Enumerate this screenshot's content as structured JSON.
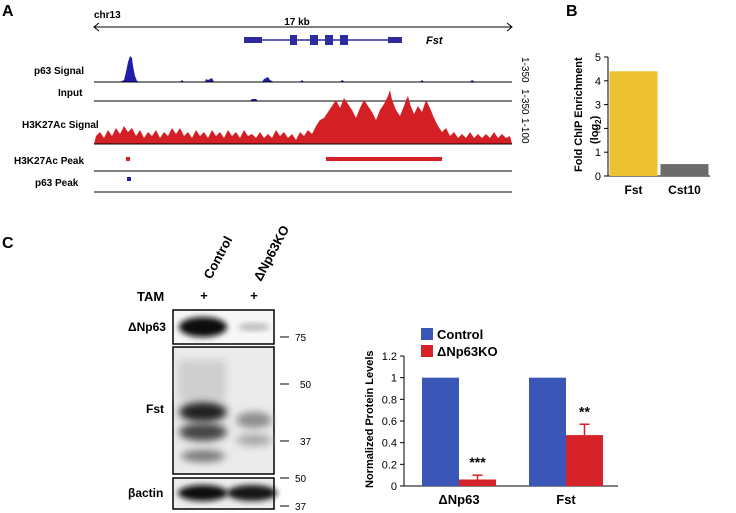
{
  "panel_labels": {
    "a": "A",
    "b": "B",
    "c": "C"
  },
  "genome_browser": {
    "chrom": "chr13",
    "scale_label": "17 kb",
    "gene_name": "Fst",
    "tracks": [
      {
        "name": "p63 Signal",
        "range": "1-350"
      },
      {
        "name": "Input",
        "range": "1-350"
      },
      {
        "name": "H3K27Ac Signal",
        "range": "1-100"
      },
      {
        "name": "H3K27Ac Peak",
        "range": ""
      },
      {
        "name": "p63 Peak",
        "range": ""
      }
    ]
  },
  "western_blot": {
    "lanes": [
      "Control",
      "ΔNp63KO"
    ],
    "tam_label": "TAM",
    "tam_marks": [
      "+",
      "+"
    ],
    "blots": [
      {
        "label": "ΔNp63",
        "markers": [
          "75"
        ]
      },
      {
        "label": "Fst",
        "markers": [
          "50",
          "37"
        ]
      },
      {
        "label": "βactin",
        "markers": [
          "50",
          "37"
        ]
      }
    ]
  },
  "chart_data": [
    {
      "type": "bar",
      "panel": "B",
      "title": "",
      "xlabel": "",
      "ylabel": "Fold ChIP Enrichment",
      "ylabel_sub": "(log",
      "ylabel_subscript": "2",
      "ylabel_close": ")",
      "categories": [
        "Fst",
        "Cst10"
      ],
      "values": [
        4.4,
        0.5
      ],
      "colors": [
        "#ecc232",
        "#6c6c6c"
      ],
      "ylim": [
        0,
        5
      ],
      "yticks": [
        "0",
        "1",
        "2",
        "3",
        "4",
        "5"
      ]
    },
    {
      "type": "bar",
      "panel": "C",
      "title": "",
      "xlabel": "",
      "ylabel": "Normalized Protein Levels",
      "categories": [
        "ΔNp63",
        "Fst"
      ],
      "series": [
        {
          "name": "Control",
          "values": [
            1.0,
            1.0
          ],
          "color": "#3a57b7",
          "errors": [
            0,
            0
          ]
        },
        {
          "name": "ΔNp63KO",
          "values": [
            0.06,
            0.47
          ],
          "color": "#d62329",
          "errors": [
            0.04,
            0.1
          ]
        }
      ],
      "annotations": [
        "***",
        "**"
      ],
      "ylim": [
        0,
        1.2
      ],
      "yticks": [
        "0",
        "0.2",
        "0.4",
        "0.6",
        "0.8",
        "1",
        "1.2"
      ],
      "legend": "top-left"
    }
  ]
}
